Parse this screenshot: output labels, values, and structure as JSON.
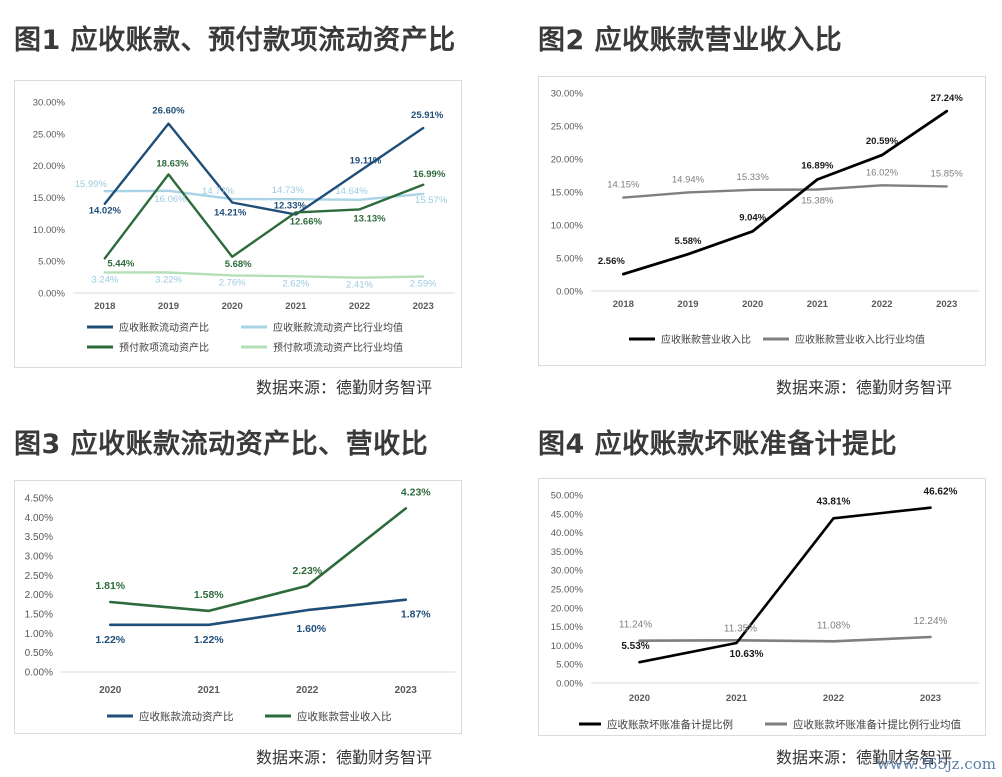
{
  "figures": [
    {
      "title": "图1 应收账款、预付款项流动资产比",
      "source": "数据来源：德勤财务智评"
    },
    {
      "title": "图2 应收账款营业收入比",
      "source": "数据来源：德勤财务智评"
    },
    {
      "title": "图3 应收账款流动资产比、营收比",
      "source": "数据来源：德勤财务智评"
    },
    {
      "title": "图4 应收账款坏账准备计提比",
      "source": "数据来源：德勤财务智评"
    }
  ],
  "watermark": "www.365jz.com",
  "chart_data": [
    {
      "type": "line",
      "title": "图1 应收账款、预付款项流动资产比",
      "categories": [
        "2018",
        "2019",
        "2020",
        "2021",
        "2022",
        "2023"
      ],
      "yticks": [
        "0.00%",
        "5.00%",
        "10.00%",
        "15.00%",
        "20.00%",
        "25.00%",
        "30.00%"
      ],
      "ylim": [
        0,
        30
      ],
      "grid": false,
      "legend_position": "bottom",
      "series": [
        {
          "name": "应收账款流动资产比",
          "color": "#1f4e79",
          "values": [
            14.02,
            26.6,
            14.21,
            12.33,
            19.11,
            25.91
          ],
          "labels": [
            "14.02%",
            "26.60%",
            "14.21%",
            "12.33%",
            "19.11%",
            "25.91%"
          ]
        },
        {
          "name": "应收账款流动资产比行业均值",
          "color": "#a9d3e6",
          "values": [
            15.99,
            16.06,
            14.77,
            14.73,
            14.64,
            15.57
          ],
          "labels": [
            "15.99%",
            "16.06%",
            "14.77%",
            "14.73%",
            "14.64%",
            "15.57%"
          ]
        },
        {
          "name": "预付款项流动资产比",
          "color": "#2e6b3c",
          "values": [
            5.44,
            18.63,
            5.68,
            12.66,
            13.13,
            16.99
          ],
          "labels": [
            "5.44%",
            "18.63%",
            "5.68%",
            "12.66%",
            "13.13%",
            "16.99%"
          ]
        },
        {
          "name": "预付款项流动资产比行业均值",
          "color": "#b5dfb6",
          "values": [
            3.24,
            3.22,
            2.76,
            2.62,
            2.41,
            2.59
          ],
          "labels": [
            "3.24%",
            "3.22%",
            "2.76%",
            "2.62%",
            "2.41%",
            "2.59%"
          ]
        }
      ]
    },
    {
      "type": "line",
      "title": "图2 应收账款营业收入比",
      "categories": [
        "2018",
        "2019",
        "2020",
        "2021",
        "2022",
        "2023"
      ],
      "yticks": [
        "0.00%",
        "5.00%",
        "10.00%",
        "15.00%",
        "20.00%",
        "25.00%",
        "30.00%"
      ],
      "ylim": [
        0,
        30
      ],
      "grid": false,
      "legend_position": "bottom",
      "series": [
        {
          "name": "应收账款营业收入比",
          "color": "#000000",
          "values": [
            2.56,
            5.58,
            9.04,
            16.89,
            20.59,
            27.24
          ],
          "labels": [
            "2.56%",
            "5.58%",
            "9.04%",
            "16.89%",
            "20.59%",
            "27.24%"
          ]
        },
        {
          "name": "应收账款营业收入比行业均值",
          "color": "#7f7f7f",
          "values": [
            14.15,
            14.94,
            15.33,
            15.38,
            16.02,
            15.85
          ],
          "labels": [
            "14.15%",
            "14.94%",
            "15.33%",
            "15.38%",
            "16.02%",
            "15.85%"
          ]
        }
      ]
    },
    {
      "type": "line",
      "title": "图3 应收账款流动资产比、营收比",
      "categories": [
        "2020",
        "2021",
        "2022",
        "2023"
      ],
      "yticks": [
        "0.00%",
        "0.50%",
        "1.00%",
        "1.50%",
        "2.00%",
        "2.50%",
        "3.00%",
        "3.50%",
        "4.00%",
        "4.50%"
      ],
      "ylim": [
        0,
        4.5
      ],
      "grid": false,
      "legend_position": "bottom",
      "series": [
        {
          "name": "应收账款流动资产比",
          "color": "#1f4e79",
          "values": [
            1.22,
            1.22,
            1.6,
            1.87
          ],
          "labels": [
            "1.22%",
            "1.22%",
            "1.60%",
            "1.87%"
          ]
        },
        {
          "name": "应收账款营业收入比",
          "color": "#2e6b3c",
          "values": [
            1.81,
            1.58,
            2.23,
            4.23
          ],
          "labels": [
            "1.81%",
            "1.58%",
            "2.23%",
            "4.23%"
          ]
        }
      ]
    },
    {
      "type": "line",
      "title": "图4 应收账款坏账准备计提比",
      "categories": [
        "2020",
        "2021",
        "2022",
        "2023"
      ],
      "yticks": [
        "0.00%",
        "5.00%",
        "10.00%",
        "15.00%",
        "20.00%",
        "25.00%",
        "30.00%",
        "35.00%",
        "40.00%",
        "45.00%",
        "50.00%"
      ],
      "ylim": [
        0,
        50
      ],
      "grid": false,
      "legend_position": "bottom",
      "series": [
        {
          "name": "应收账款坏账准备计提比例",
          "color": "#000000",
          "values": [
            5.53,
            10.63,
            43.81,
            46.62
          ],
          "labels": [
            "5.53%",
            "10.63%",
            "43.81%",
            "46.62%"
          ]
        },
        {
          "name": "应收账款坏账准备计提比例行业均值",
          "color": "#7f7f7f",
          "values": [
            11.24,
            11.35,
            11.08,
            12.24
          ],
          "labels": [
            "11.24%",
            "11.35%",
            "11.08%",
            "12.24%"
          ]
        }
      ]
    }
  ]
}
